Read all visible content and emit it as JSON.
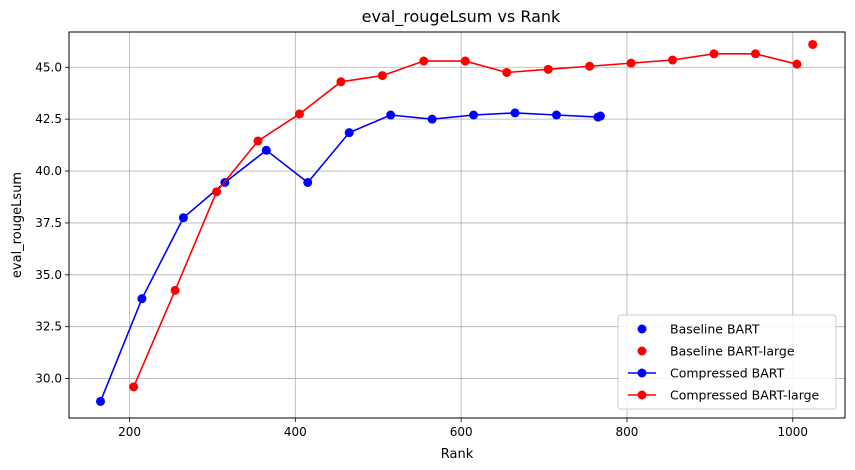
{
  "chart_data": {
    "type": "line",
    "title": "eval_rougeLsum vs Rank",
    "xlabel": "Rank",
    "ylabel": "eval_rougeLsum",
    "xlim": [
      127,
      1063
    ],
    "ylim": [
      28.1,
      46.7
    ],
    "xticks": [
      200,
      400,
      600,
      800,
      1000
    ],
    "yticks": [
      30.0,
      32.5,
      35.0,
      37.5,
      40.0,
      42.5,
      45.0
    ],
    "xtick_labels": [
      "200",
      "400",
      "600",
      "800",
      "1000"
    ],
    "ytick_labels": [
      "30.0",
      "32.5",
      "35.0",
      "37.5",
      "40.0",
      "42.5",
      "45.0"
    ],
    "grid": true,
    "legend_position": "lower right",
    "series": [
      {
        "name": "Baseline BART",
        "kind": "scatter",
        "color": "#0000ff",
        "points": [
          [
            768,
            42.65
          ]
        ]
      },
      {
        "name": "Baseline BART-large",
        "kind": "scatter",
        "color": "#ff0000",
        "points": [
          [
            1024,
            46.1
          ]
        ]
      },
      {
        "name": "Compressed BART",
        "kind": "line",
        "color": "#0000ff",
        "points": [
          [
            165,
            28.9
          ],
          [
            215,
            33.85
          ],
          [
            265,
            37.75
          ],
          [
            315,
            39.45
          ],
          [
            365,
            41.0
          ],
          [
            415,
            39.45
          ],
          [
            465,
            41.85
          ],
          [
            515,
            42.7
          ],
          [
            565,
            42.5
          ],
          [
            615,
            42.7
          ],
          [
            665,
            42.8
          ],
          [
            715,
            42.7
          ],
          [
            765,
            42.6
          ]
        ]
      },
      {
        "name": "Compressed BART-large",
        "kind": "line",
        "color": "#ff0000",
        "points": [
          [
            205,
            29.6
          ],
          [
            255,
            34.25
          ],
          [
            305,
            39.0
          ],
          [
            355,
            41.45
          ],
          [
            405,
            42.75
          ],
          [
            455,
            44.3
          ],
          [
            505,
            44.6
          ],
          [
            555,
            45.3
          ],
          [
            605,
            45.3
          ],
          [
            655,
            44.75
          ],
          [
            705,
            44.9
          ],
          [
            755,
            45.05
          ],
          [
            805,
            45.2
          ],
          [
            855,
            45.35
          ],
          [
            905,
            45.65
          ],
          [
            955,
            45.65
          ],
          [
            1005,
            45.15
          ]
        ]
      }
    ]
  }
}
